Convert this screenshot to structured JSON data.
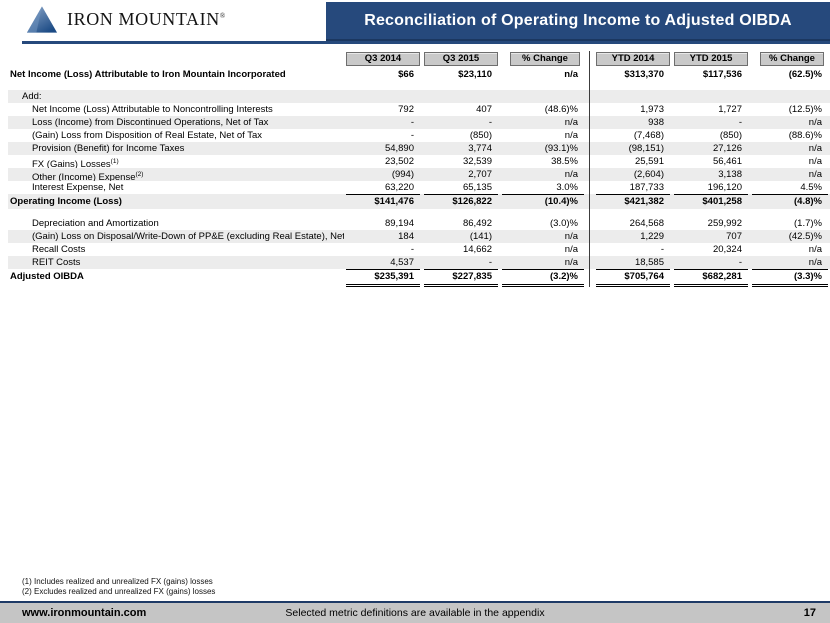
{
  "logo": {
    "brand": "Iron Mountain",
    "mark": "®"
  },
  "header": {
    "title": "Reconciliation of Operating Income to Adjusted OIBDA"
  },
  "table": {
    "columns": [
      "Q3 2014",
      "Q3 2015",
      "% Change",
      "YTD 2014",
      "YTD 2015",
      "% Change"
    ],
    "rows": [
      {
        "label": "Net Income (Loss) Attributable to Iron Mountain Incorporated",
        "indent": 0,
        "bold": true,
        "values": [
          "$66",
          "$23,110",
          "n/a",
          "$313,370",
          "$117,536",
          "(62.5)%"
        ],
        "gap_after": true
      },
      {
        "label": "Add:",
        "indent": 1,
        "shaded": true,
        "values": [
          "",
          "",
          "",
          "",
          "",
          ""
        ]
      },
      {
        "label": "Net Income (Loss) Attributable to Noncontrolling Interests",
        "indent": 2,
        "values": [
          "792",
          "407",
          "(48.6)%",
          "1,973",
          "1,727",
          "(12.5)%"
        ]
      },
      {
        "label": "Loss (Income) from Discontinued Operations, Net of Tax",
        "indent": 2,
        "shaded": true,
        "values": [
          "-",
          "-",
          "n/a",
          "938",
          "-",
          "n/a"
        ]
      },
      {
        "label": "(Gain) Loss from Disposition of Real Estate, Net of Tax",
        "indent": 2,
        "values": [
          "-",
          "(850)",
          "n/a",
          "(7,468)",
          "(850)",
          "(88.6)%"
        ]
      },
      {
        "label": "Provision (Benefit) for Income Taxes",
        "indent": 2,
        "shaded": true,
        "values": [
          "54,890",
          "3,774",
          "(93.1)%",
          "(98,151)",
          "27,126",
          "n/a"
        ]
      },
      {
        "label": "FX (Gains) Losses",
        "sup": "(1)",
        "indent": 2,
        "values": [
          "23,502",
          "32,539",
          "38.5%",
          "25,591",
          "56,461",
          "n/a"
        ]
      },
      {
        "label": "Other (Income) Expense",
        "sup": "(2)",
        "indent": 2,
        "shaded": true,
        "values": [
          "(994)",
          "2,707",
          "n/a",
          "(2,604)",
          "3,138",
          "n/a"
        ]
      },
      {
        "label": "Interest Expense, Net",
        "indent": 2,
        "underline": true,
        "values": [
          "63,220",
          "65,135",
          "3.0%",
          "187,733",
          "196,120",
          "4.5%"
        ]
      },
      {
        "label": "Operating Income (Loss)",
        "indent": 0,
        "bold": true,
        "shaded": true,
        "values": [
          "$141,476",
          "$126,822",
          "(10.4)%",
          "$421,382",
          "$401,258",
          "(4.8)%"
        ],
        "gap_after": true
      },
      {
        "label": "Depreciation and Amortization",
        "indent": 2,
        "values": [
          "89,194",
          "86,492",
          "(3.0)%",
          "264,568",
          "259,992",
          "(1.7)%"
        ]
      },
      {
        "label": "(Gain) Loss on Disposal/Write-Down of PP&E (excluding Real Estate), Net",
        "indent": 2,
        "shaded": true,
        "values": [
          "184",
          "(141)",
          "n/a",
          "1,229",
          "707",
          "(42.5)%"
        ]
      },
      {
        "label": "Recall Costs",
        "indent": 2,
        "values": [
          "-",
          "14,662",
          "n/a",
          "-",
          "20,324",
          "n/a"
        ]
      },
      {
        "label": "REIT Costs",
        "indent": 2,
        "shaded": true,
        "underline": true,
        "values": [
          "4,537",
          "-",
          "n/a",
          "18,585",
          "-",
          "n/a"
        ]
      },
      {
        "label": "Adjusted OIBDA",
        "indent": 0,
        "bold": true,
        "double_underline": true,
        "values": [
          "$235,391",
          "$227,835",
          "(3.2)%",
          "$705,764",
          "$682,281",
          "(3.3)%"
        ]
      }
    ]
  },
  "footnotes": [
    "(1) Includes realized and unrealized FX (gains) losses",
    "(2) Excludes realized and unrealized FX (gains) losses"
  ],
  "footer": {
    "website": "www.ironmountain.com",
    "note": "Selected metric definitions are available in the appendix",
    "page": "17"
  },
  "colors": {
    "navy": "#26497c",
    "header_cell_gray": "#c9c9c9",
    "shaded_row_gray": "#ececec",
    "footer_gray": "#c5c5c5"
  }
}
